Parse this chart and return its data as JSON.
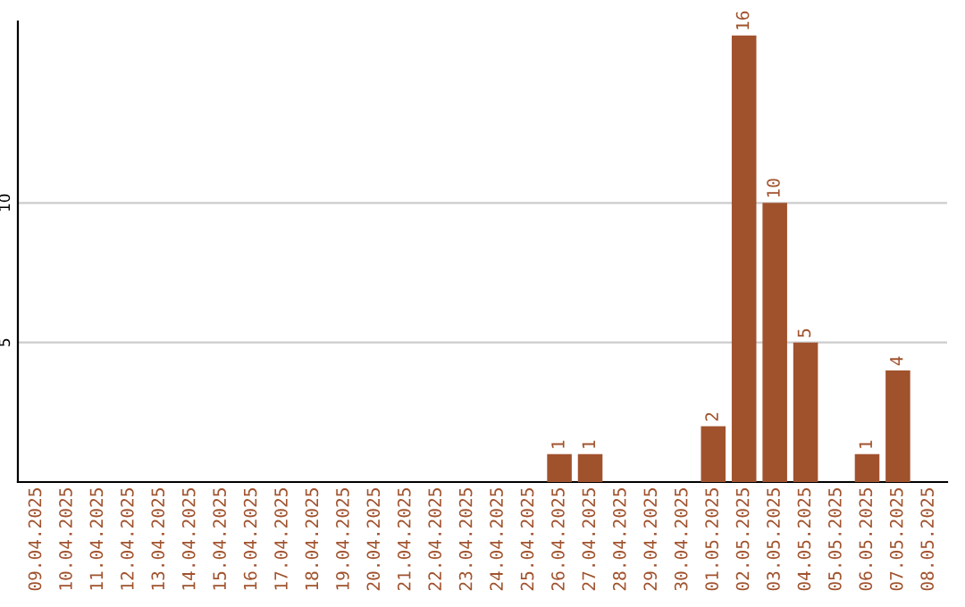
{
  "chart_data": {
    "type": "bar",
    "categories": [
      "09.04.2025",
      "10.04.2025",
      "11.04.2025",
      "12.04.2025",
      "13.04.2025",
      "14.04.2025",
      "15.04.2025",
      "16.04.2025",
      "17.04.2025",
      "18.04.2025",
      "19.04.2025",
      "20.04.2025",
      "21.04.2025",
      "22.04.2025",
      "23.04.2025",
      "24.04.2025",
      "25.04.2025",
      "26.04.2025",
      "27.04.2025",
      "28.04.2025",
      "29.04.2025",
      "30.04.2025",
      "01.05.2025",
      "02.05.2025",
      "03.05.2025",
      "04.05.2025",
      "05.05.2025",
      "06.05.2025",
      "07.05.2025",
      "08.05.2025"
    ],
    "values": [
      0,
      0,
      0,
      0,
      0,
      0,
      0,
      0,
      0,
      0,
      0,
      0,
      0,
      0,
      0,
      0,
      0,
      1,
      1,
      0,
      0,
      0,
      2,
      16,
      10,
      5,
      0,
      1,
      4,
      0
    ],
    "value_labels": [
      null,
      null,
      null,
      null,
      null,
      null,
      null,
      null,
      null,
      null,
      null,
      null,
      null,
      null,
      null,
      null,
      null,
      "1",
      "1",
      null,
      null,
      null,
      "2",
      "16",
      "10",
      "5",
      null,
      "1",
      "4",
      null
    ],
    "color": "#a0522d",
    "ylim": [
      0,
      16.5
    ],
    "yticks": [
      5,
      10
    ],
    "grid": "y"
  }
}
